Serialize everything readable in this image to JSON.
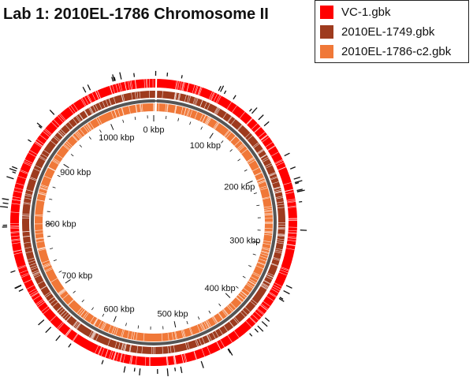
{
  "title": "Lab 1: 2010EL-1786 Chromosome II",
  "legend": [
    {
      "label": "VC-1.gbk",
      "color": "#ff0000"
    },
    {
      "label": "2010EL-1749.gbk",
      "color": "#9e3b1e"
    },
    {
      "label": "2010EL-1786-c2.gbk",
      "color": "#f07838"
    }
  ],
  "ring_plot": {
    "genome_length_kbp": 1070,
    "tick_labels": [
      {
        "value": 0,
        "label": "0 kbp"
      },
      {
        "value": 100,
        "label": "100 kbp"
      },
      {
        "value": 200,
        "label": "200 kbp"
      },
      {
        "value": 300,
        "label": "300 kbp"
      },
      {
        "value": 400,
        "label": "400 kbp"
      },
      {
        "value": 500,
        "label": "500 kbp"
      },
      {
        "value": 600,
        "label": "600 kbp"
      },
      {
        "value": 700,
        "label": "700 kbp"
      },
      {
        "value": 800,
        "label": "800 kbp"
      },
      {
        "value": 900,
        "label": "900 kbp"
      },
      {
        "value": 1000,
        "label": "1000 kbp"
      }
    ],
    "backbone_color": "#555555"
  }
}
